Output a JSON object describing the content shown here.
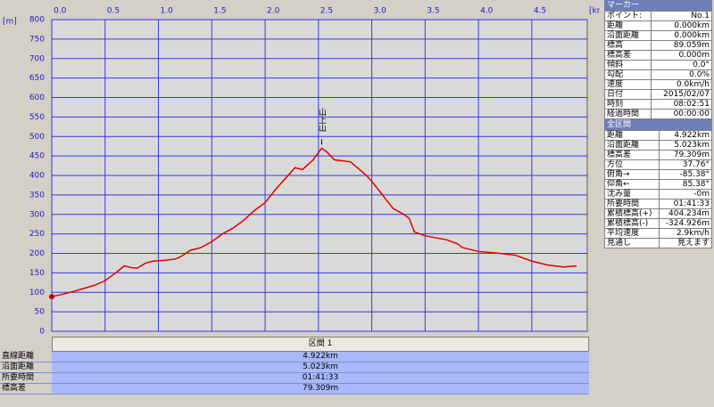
{
  "chart_data": {
    "type": "line",
    "y_unit": "[m]",
    "x_unit": "[km]",
    "annotation": "山上山",
    "x": [
      0,
      0.1,
      0.2,
      0.3,
      0.4,
      0.5,
      0.6,
      0.68,
      0.75,
      0.8,
      0.88,
      0.95,
      1.05,
      1.15,
      1.2,
      1.3,
      1.4,
      1.5,
      1.6,
      1.7,
      1.8,
      1.9,
      2.0,
      2.1,
      2.2,
      2.28,
      2.35,
      2.45,
      2.53,
      2.58,
      2.65,
      2.8,
      2.95,
      3.0,
      3.1,
      3.2,
      3.3,
      3.35,
      3.4,
      3.5,
      3.7,
      3.8,
      3.85,
      4.0,
      4.2,
      4.35,
      4.5,
      4.65,
      4.8,
      4.92
    ],
    "series": [
      {
        "color": "#e00000",
        "values": [
          89,
          95,
          102,
          110,
          118,
          130,
          150,
          168,
          163,
          162,
          175,
          180,
          182,
          185,
          190,
          208,
          215,
          230,
          250,
          265,
          285,
          310,
          330,
          365,
          395,
          420,
          415,
          440,
          470,
          460,
          440,
          435,
          400,
          385,
          350,
          315,
          300,
          290,
          255,
          245,
          235,
          225,
          215,
          205,
          200,
          195,
          180,
          170,
          165,
          168
        ]
      }
    ],
    "xlim": [
      0,
      5.02
    ],
    "ylim": [
      0,
      800
    ],
    "xticks": [
      {
        "value": 0,
        "label": "0.0"
      },
      0.5,
      {
        "value": 1,
        "label": "1.0"
      },
      1.5,
      {
        "value": 2,
        "label": "2.0"
      },
      2.5,
      {
        "value": 3,
        "label": "3.0"
      },
      3.5,
      {
        "value": 4,
        "label": "4.0"
      },
      4.5
    ],
    "yticks": [
      0,
      50,
      100,
      150,
      200,
      250,
      300,
      350,
      400,
      450,
      500,
      550,
      600,
      650,
      700,
      750,
      800
    ],
    "grid": true
  },
  "marker_panel": {
    "title": "マーカー",
    "rows": [
      [
        "ポイント:",
        "No.1"
      ],
      [
        "距離",
        "0.000km"
      ],
      [
        "沿面距離",
        "0.000km"
      ],
      [
        "標高",
        "89.059m"
      ],
      [
        "標高差",
        "0.000m"
      ],
      [
        "傾斜",
        "0.0°"
      ],
      [
        "勾配",
        "0.0%"
      ],
      [
        "速度",
        "0.0km/h"
      ],
      [
        "日付",
        "2015/02/07"
      ],
      [
        "時刻",
        "08:02:51"
      ],
      [
        "経過時間",
        "00:00:00"
      ]
    ]
  },
  "total_panel": {
    "title": "全区間",
    "rows": [
      [
        "距離",
        "4.922km"
      ],
      [
        "沿面距離",
        "5.023km"
      ],
      [
        "標高差",
        "79.309m"
      ],
      [
        "方位",
        "37.76°"
      ],
      [
        "俯角→",
        "-85.38°"
      ],
      [
        "仰角←",
        "85.38°"
      ],
      [
        "沈み量",
        "-0m"
      ],
      [
        "所要時間",
        "01:41:33"
      ],
      [
        "累積標高(+)",
        "404.234m"
      ],
      [
        "累積標高(-)",
        "-324.926m"
      ],
      [
        "平均速度",
        "2.9km/h"
      ],
      [
        "見通し",
        "見えます"
      ]
    ]
  },
  "section_table": {
    "header": "区間 1",
    "rows": [
      [
        "直線距離",
        "4.922km"
      ],
      [
        "沿面距離",
        "5.023km"
      ],
      [
        "所要時間",
        "01:41:33"
      ],
      [
        "標高差",
        "79.309m"
      ]
    ]
  }
}
